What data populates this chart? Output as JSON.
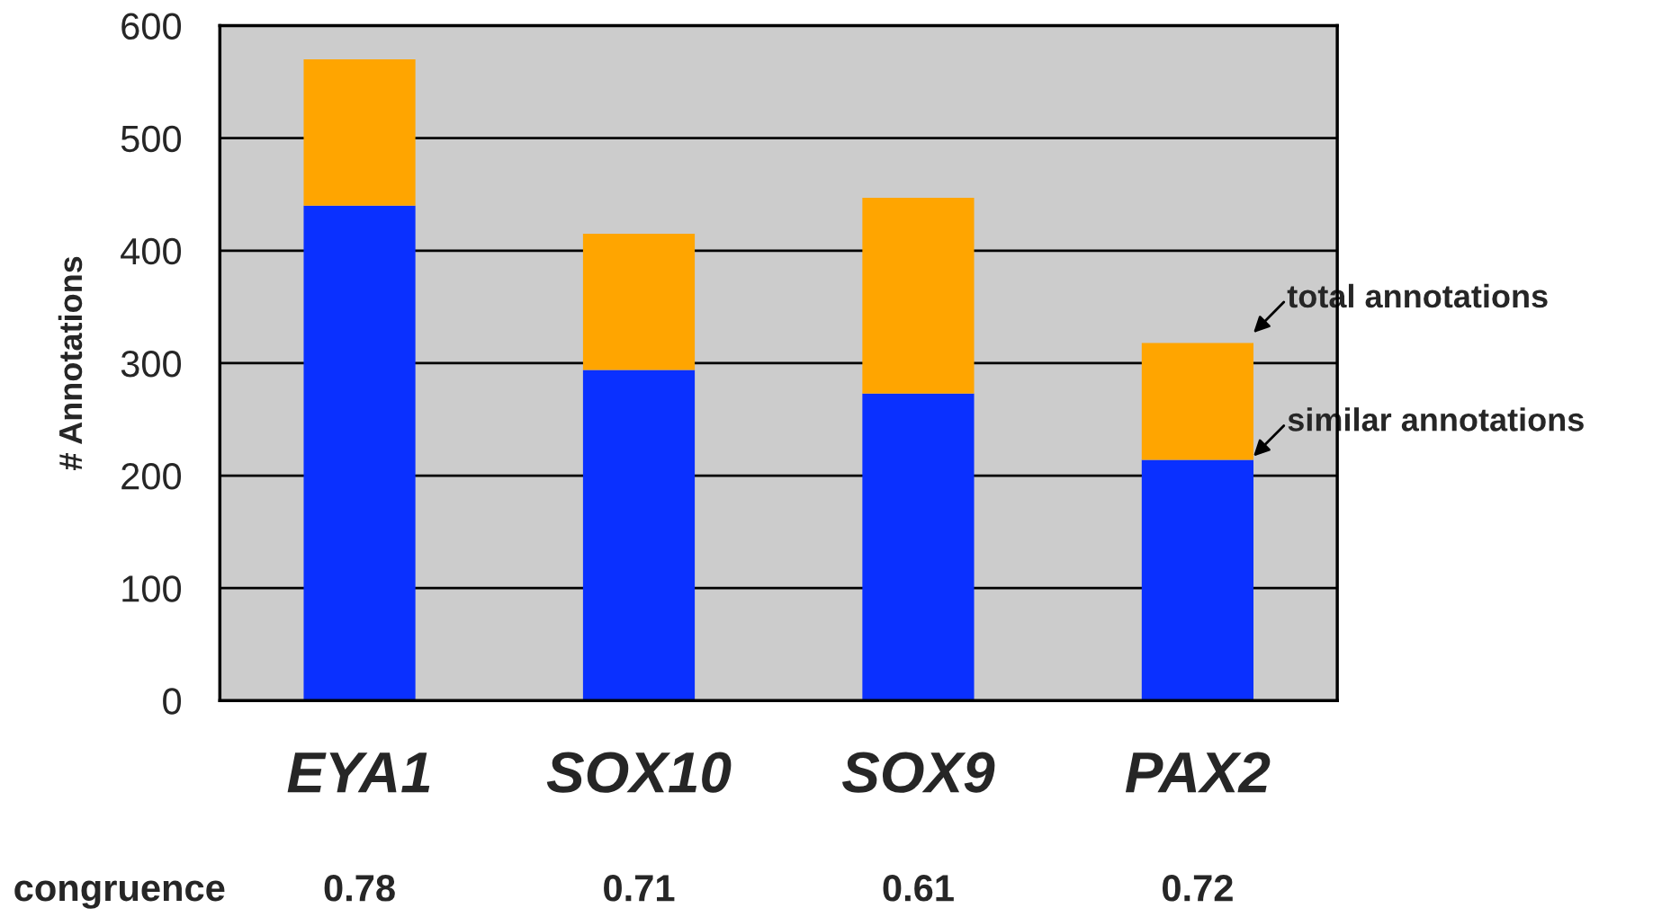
{
  "chart_data": {
    "type": "bar",
    "stacked": true,
    "ylabel": "# Annotations",
    "categories": [
      "EYA1",
      "SOX10",
      "SOX9",
      "PAX2"
    ],
    "series": [
      {
        "color": "#0a30ff",
        "values": [
          440,
          294,
          273,
          214
        ]
      },
      {
        "color": "#ffa500",
        "values": [
          130,
          121,
          174,
          104
        ]
      }
    ],
    "ylim": [
      0,
      600
    ],
    "yticks": [
      0,
      100,
      200,
      300,
      400,
      500,
      600
    ],
    "grid": "y",
    "legend": false,
    "annotations": [
      "total annotations",
      "similar annotations",
      "congruence",
      "0.78",
      "0.71",
      "0.61",
      "0.72"
    ]
  }
}
